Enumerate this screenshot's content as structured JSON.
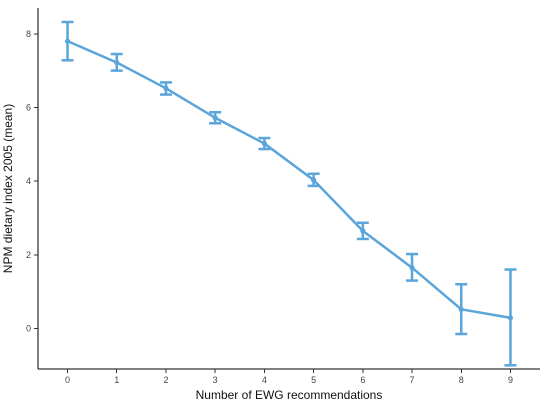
{
  "chart_data": {
    "type": "line",
    "xlabel": "Number of EWG recommendations",
    "ylabel": "NPM dietary index 2005 (mean)",
    "x": [
      0,
      1,
      2,
      3,
      4,
      5,
      6,
      7,
      8,
      9
    ],
    "xlim": [
      -0.6,
      9.6
    ],
    "ylim": [
      -1.1,
      8.7
    ],
    "xticks": [
      "0",
      "1",
      "2",
      "3",
      "4",
      "5",
      "6",
      "7",
      "8",
      "9"
    ],
    "yticks": [
      "0",
      "2",
      "4",
      "6",
      "8"
    ],
    "grid": false,
    "series": [
      {
        "color": "#5aa5da",
        "values": [
          7.8,
          7.22,
          6.52,
          5.72,
          5.02,
          4.03,
          2.65,
          1.65,
          0.52,
          0.29
        ],
        "lower": [
          7.28,
          7.0,
          6.35,
          5.57,
          4.87,
          3.87,
          2.43,
          1.3,
          -0.15,
          -1.0
        ],
        "upper": [
          8.32,
          7.45,
          6.68,
          5.87,
          5.17,
          4.2,
          2.87,
          2.02,
          1.2,
          1.6
        ]
      }
    ]
  }
}
